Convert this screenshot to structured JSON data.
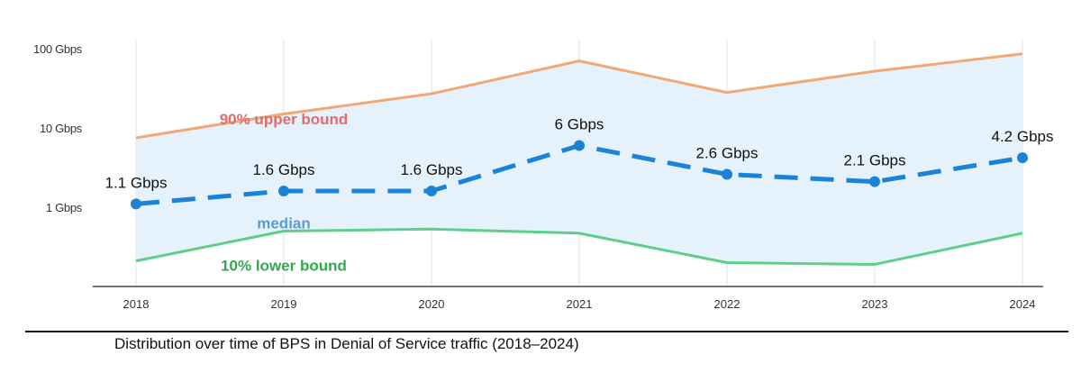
{
  "chart_data": {
    "type": "area",
    "y_scale": "log",
    "categories": [
      "2018",
      "2019",
      "2020",
      "2021",
      "2022",
      "2023",
      "2024"
    ],
    "y_ticks": [
      {
        "value": 1,
        "label": "1 Gbps"
      },
      {
        "value": 10,
        "label": "10 Gbps"
      },
      {
        "value": 100,
        "label": "100 Gbps"
      }
    ],
    "ylim": [
      0.12,
      100
    ],
    "series": [
      {
        "name": "90% upper bound",
        "role": "upper",
        "color": "#f0a877",
        "label_color": "#e06c6c",
        "values": [
          7.5,
          15,
          27,
          70,
          28,
          52,
          86
        ]
      },
      {
        "name": "median",
        "role": "median",
        "color": "#1b82d6",
        "label_color": "#5a9bd5",
        "values": [
          1.1,
          1.6,
          1.6,
          6,
          2.6,
          2.1,
          4.2
        ],
        "data_labels": [
          "1.1 Gbps",
          "1.6 Gbps",
          "1.6 Gbps",
          "6 Gbps",
          "2.6 Gbps",
          "2.1 Gbps",
          "4.2 Gbps"
        ]
      },
      {
        "name": "10% lower bound",
        "role": "lower",
        "color": "#5ecf8a",
        "label_color": "#2daa4e",
        "values": [
          0.21,
          0.5,
          0.53,
          0.47,
          0.2,
          0.19,
          0.47
        ]
      }
    ],
    "band_color": "#e2f1fb",
    "grid": "vertical",
    "caption": "Distribution over time of BPS in Denial of Service traffic (2018–2024)"
  }
}
